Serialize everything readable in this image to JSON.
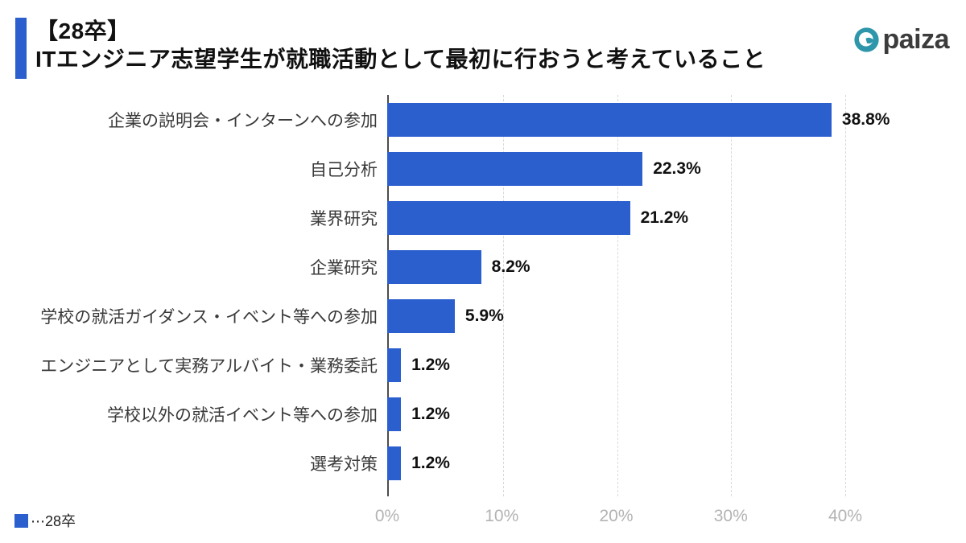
{
  "header": {
    "title_line1": "【28卒】",
    "title_line2": "ITエンジニア志望学生が就職活動として最初に行おうと考えていること"
  },
  "logo": {
    "text": "paiza"
  },
  "colors": {
    "bar_blue": "#2b5fce",
    "accent_blue": "#2b5fce",
    "logo_teal": "#2e96ab",
    "gridline": "#d9d9d9",
    "axis_line": "#4d4d4d",
    "tick_label": "#b3b3b3"
  },
  "legend": {
    "label": "⋯28卒"
  },
  "chart_data": {
    "type": "bar",
    "orientation": "horizontal",
    "title": "【28卒】ITエンジニア志望学生が就職活動として最初に行おうと考えていること",
    "series_name": "28卒",
    "categories": [
      "企業の説明会・インターンへの参加",
      "自己分析",
      "業界研究",
      "企業研究",
      "学校の就活ガイダンス・イベント等への参加",
      "エンジニアとして実務アルバイト・業務委託",
      "学校以外の就活イベント等への参加",
      "選考対策"
    ],
    "values": [
      38.8,
      22.3,
      21.2,
      8.2,
      5.9,
      1.2,
      1.2,
      1.2
    ],
    "value_labels": [
      "38.8%",
      "22.3%",
      "21.2%",
      "8.2%",
      "5.9%",
      "1.2%",
      "1.2%",
      "1.2%"
    ],
    "x_ticks": [
      "0%",
      "10%",
      "20%",
      "30%",
      "40%"
    ],
    "xlim": [
      0,
      40
    ],
    "grid": "vertical-dashed",
    "legend_position": "bottom-left"
  }
}
